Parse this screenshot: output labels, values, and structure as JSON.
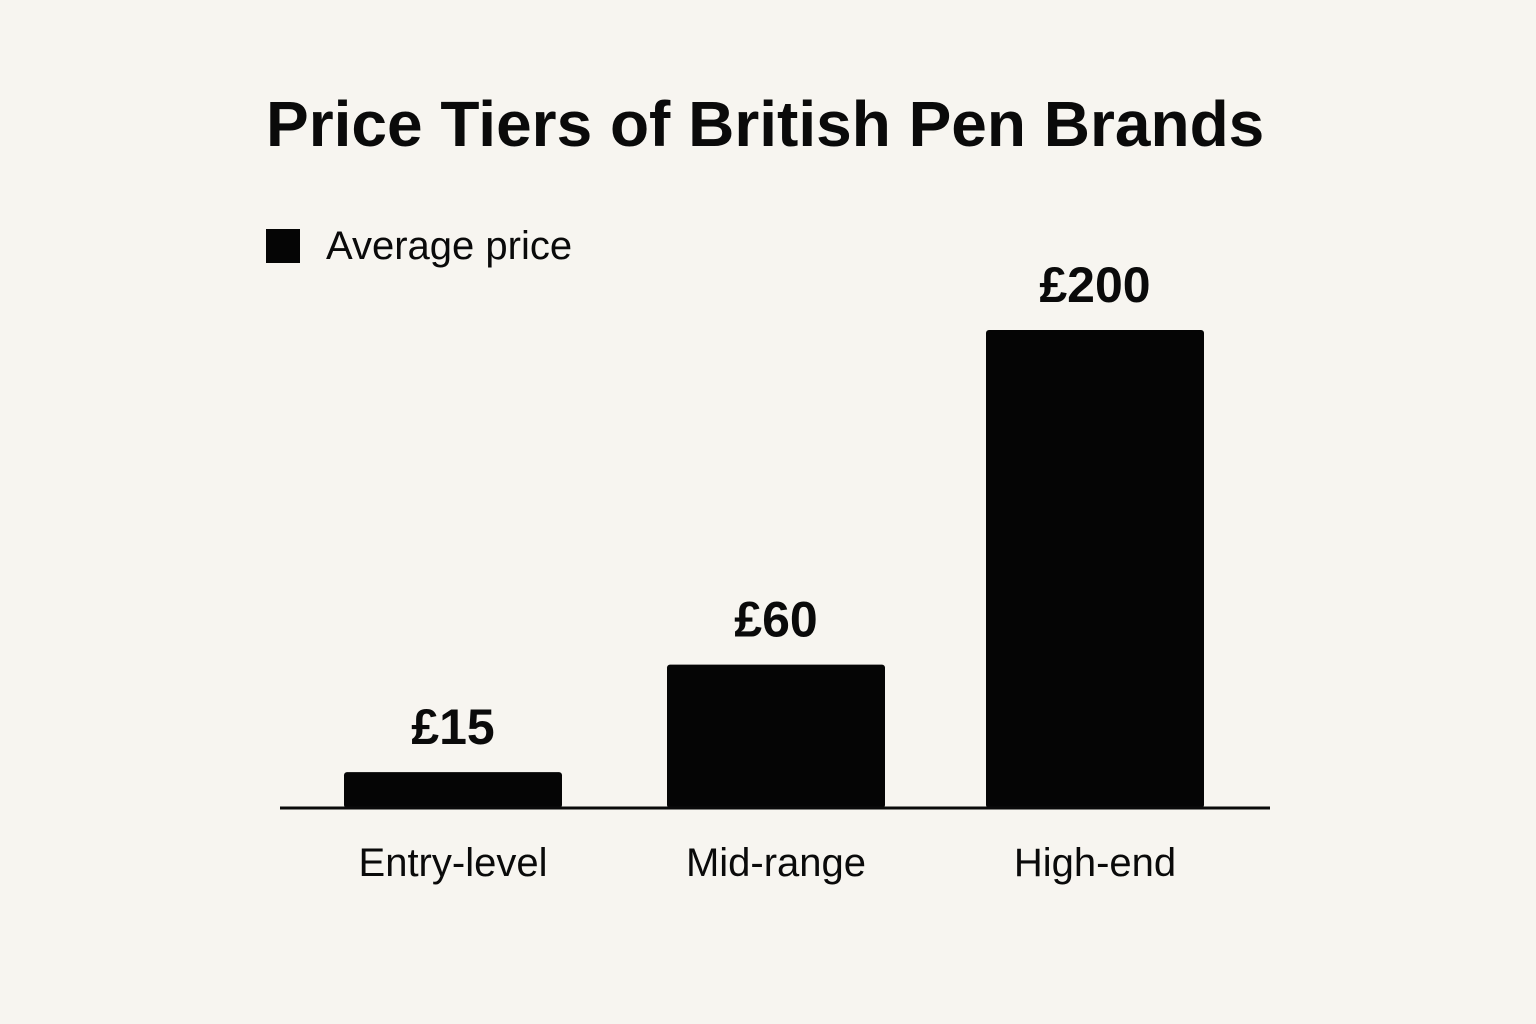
{
  "chart_data": {
    "type": "bar",
    "title": "Price Tiers of British Pen Brands",
    "categories": [
      "Entry-level",
      "Mid-range",
      "High-end"
    ],
    "series": [
      {
        "name": "Average price",
        "values": [
          15,
          60,
          200
        ],
        "data_labels": [
          "£15",
          "£60",
          "£200"
        ]
      }
    ],
    "ylim": [
      0,
      230
    ],
    "grid": false,
    "legend": "top-left",
    "colors": {
      "bar": "#050505",
      "background": "#f7f5f0",
      "text": "#0a0a0a"
    }
  }
}
